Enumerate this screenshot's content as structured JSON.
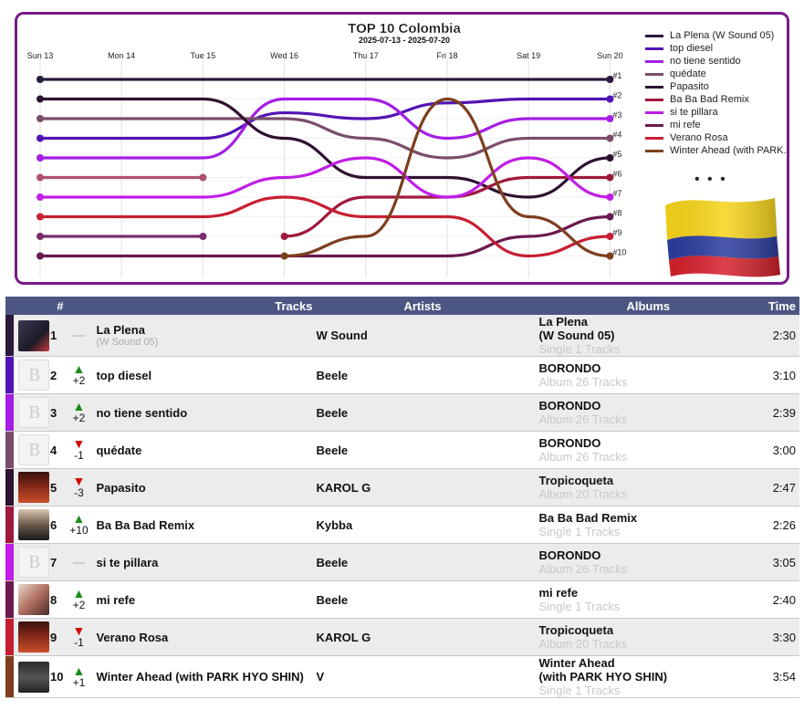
{
  "chart_data": {
    "type": "line",
    "title": "TOP 10 Colombia",
    "subtitle": "2025-07-13 - 2025-07-20",
    "x": [
      "Sun 13",
      "Mon 14",
      "Tue 15",
      "Wed 16",
      "Thu 17",
      "Fri 18",
      "Sat 19",
      "Sun 20"
    ],
    "rank_labels": [
      "#1",
      "#2",
      "#3",
      "#4",
      "#5",
      "#6",
      "#7",
      "#8",
      "#9",
      "#10"
    ],
    "ylim": [
      1,
      10
    ],
    "y_inverted": true,
    "series": [
      {
        "name": "La Plena (W Sound 05)",
        "color": "#2b1a3c",
        "values": [
          1,
          1,
          1,
          1,
          1,
          1,
          1,
          1
        ]
      },
      {
        "name": "top diesel",
        "color": "#5214b4",
        "values": [
          4,
          4,
          4,
          2.7,
          3,
          2.2,
          2,
          2
        ]
      },
      {
        "name": "no tiene sentido",
        "color": "#a51ee6",
        "values": [
          5,
          5,
          5,
          2,
          2,
          4,
          3,
          3
        ]
      },
      {
        "name": "quédate",
        "color": "#7a4e6a",
        "values": [
          3,
          3,
          3,
          3,
          4,
          5,
          4,
          4
        ]
      },
      {
        "name": "Papasito",
        "color": "#2e1230",
        "values": [
          2,
          2,
          2,
          4,
          6,
          6,
          7,
          5
        ]
      },
      {
        "name": "Ba Ba Bad Remix",
        "color": "#a0183c",
        "values": [
          null,
          null,
          null,
          9,
          7,
          7,
          6,
          6
        ]
      },
      {
        "name": "si te pillara",
        "color": "#c01ee6",
        "values": [
          7,
          7,
          7,
          6,
          5,
          7,
          5,
          7
        ]
      },
      {
        "name": "mi refe",
        "color": "#6a1a4e",
        "values": [
          10,
          10,
          10,
          10,
          10,
          10,
          9,
          8
        ]
      },
      {
        "name": "Verano Rosa",
        "color": "#c81e32",
        "values": [
          8,
          8,
          8,
          7,
          8,
          8,
          10,
          9
        ]
      },
      {
        "name": "Winter Ahead (with PARK HYO SHIN)",
        "color": "#7e3e1e",
        "values": [
          null,
          null,
          null,
          10,
          9,
          2,
          8,
          10
        ]
      },
      {
        "name": "",
        "color": "#b0506e",
        "values": [
          6,
          6,
          6,
          null,
          null,
          null,
          null,
          null
        ]
      },
      {
        "name": "",
        "color": "#7a2c6e",
        "values": [
          9,
          9,
          9,
          null,
          null,
          null,
          null,
          null
        ]
      }
    ],
    "legend_placement": "right"
  },
  "legend": {
    "items": [
      {
        "label": "La Plena (W Sound 05)",
        "color": "#2b1a3c"
      },
      {
        "label": "top diesel",
        "color": "#5214b4"
      },
      {
        "label": "no tiene sentido",
        "color": "#a51ee6"
      },
      {
        "label": "quédate",
        "color": "#7a4e6a"
      },
      {
        "label": "Papasito",
        "color": "#2e1230"
      },
      {
        "label": "Ba Ba Bad Remix",
        "color": "#a0183c"
      },
      {
        "label": "si te pillara",
        "color": "#c01ee6"
      },
      {
        "label": "mi refe",
        "color": "#6a1a4e"
      },
      {
        "label": "Verano Rosa",
        "color": "#c81e32"
      },
      {
        "label": "Winter Ahead (with PARK..",
        "color": "#7e3e1e"
      }
    ],
    "more": "• • •"
  },
  "table": {
    "headers": {
      "rank": "#",
      "tracks": "Tracks",
      "artists": "Artists",
      "albums": "Albums",
      "time": "Time"
    },
    "rows": [
      {
        "bar_color": "#2b1a3c",
        "cover": "dark",
        "pos": "1",
        "dir": "none",
        "change": "",
        "track": "La Plena",
        "track_sub": "(W Sound 05)",
        "artist": "W Sound",
        "album": "La Plena",
        "album2": "(W Sound 05)",
        "album_sub": "Single 1 Tracks",
        "time": "2:30"
      },
      {
        "bar_color": "#5214b4",
        "cover": "light",
        "pos": "2",
        "dir": "up",
        "change": "+2",
        "track": "top diesel",
        "track_sub": "",
        "artist": "Beele",
        "album": "BORONDO",
        "album2": "",
        "album_sub": "Album 26 Tracks",
        "time": "3:10"
      },
      {
        "bar_color": "#a51ee6",
        "cover": "light",
        "pos": "3",
        "dir": "up",
        "change": "+2",
        "track": "no tiene sentido",
        "track_sub": "",
        "artist": "Beele",
        "album": "BORONDO",
        "album2": "",
        "album_sub": "Album 26 Tracks",
        "time": "2:39"
      },
      {
        "bar_color": "#7a4e6a",
        "cover": "light",
        "pos": "4",
        "dir": "down",
        "change": "-1",
        "track": "quédate",
        "track_sub": "",
        "artist": "Beele",
        "album": "BORONDO",
        "album2": "",
        "album_sub": "Album 26 Tracks",
        "time": "3:00"
      },
      {
        "bar_color": "#2e1230",
        "cover": "red",
        "pos": "5",
        "dir": "down",
        "change": "-3",
        "track": "Papasito",
        "track_sub": "",
        "artist": "KAROL G",
        "album": "Tropicoqueta",
        "album2": "",
        "album_sub": "Album 20 Tracks",
        "time": "2:47"
      },
      {
        "bar_color": "#a0183c",
        "cover": "babad",
        "pos": "6",
        "dir": "up",
        "change": "+10",
        "track": "Ba Ba Bad Remix",
        "track_sub": "",
        "artist": "Kybba",
        "album": "Ba Ba Bad Remix",
        "album2": "",
        "album_sub": "Single 1 Tracks",
        "time": "2:26"
      },
      {
        "bar_color": "#c01ee6",
        "cover": "light",
        "pos": "7",
        "dir": "none",
        "change": "",
        "track": "si te pillara",
        "track_sub": "",
        "artist": "Beele",
        "album": "BORONDO",
        "album2": "",
        "album_sub": "Album 26 Tracks",
        "time": "3:05"
      },
      {
        "bar_color": "#6a1a4e",
        "cover": "mirefe",
        "pos": "8",
        "dir": "up",
        "change": "+2",
        "track": "mi refe",
        "track_sub": "",
        "artist": "Beele",
        "album": "mi refe",
        "album2": "",
        "album_sub": "Single 1 Tracks",
        "time": "2:40"
      },
      {
        "bar_color": "#c81e32",
        "cover": "red",
        "pos": "9",
        "dir": "down",
        "change": "-1",
        "track": "Verano Rosa",
        "track_sub": "",
        "artist": "KAROL G",
        "album": "Tropicoqueta",
        "album2": "",
        "album_sub": "Album 20 Tracks",
        "time": "3:30"
      },
      {
        "bar_color": "#7e3e1e",
        "cover": "winter",
        "pos": "10",
        "dir": "up",
        "change": "+1",
        "track": "Winter Ahead (with PARK HYO SHIN)",
        "track_sub": "",
        "artist": "V",
        "album": "Winter Ahead",
        "album2": "(with PARK HYO SHIN)",
        "album_sub": "Single 1 Tracks",
        "time": "3:54"
      }
    ]
  }
}
